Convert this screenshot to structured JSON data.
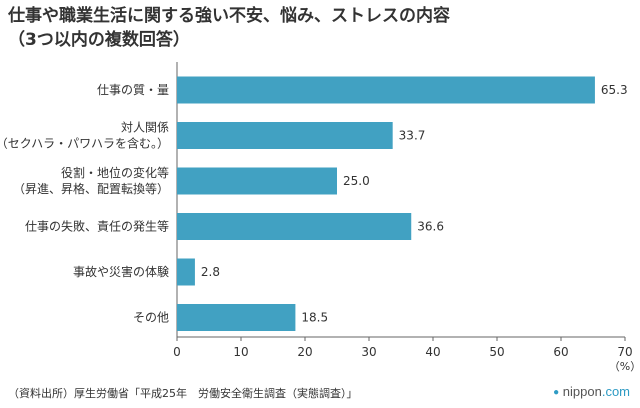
{
  "chart_data": {
    "type": "bar",
    "orientation": "horizontal",
    "title": [
      "仕事や職業生活に関する強い不安、悩み、ストレスの内容",
      "（3つ以内の複数回答）"
    ],
    "categories": [
      [
        "仕事の質・量"
      ],
      [
        "対人関係",
        "（セクハラ・パワハラを含む。）"
      ],
      [
        "役割・地位の変化等",
        "（昇進、昇格、配置転換等）"
      ],
      [
        "仕事の失敗、責任の発生等"
      ],
      [
        "事故や災害の体験"
      ],
      [
        "その他"
      ]
    ],
    "values": [
      65.3,
      33.7,
      25.0,
      36.6,
      2.8,
      18.5
    ],
    "value_labels": [
      "65.3",
      "33.7",
      "25.0",
      "36.6",
      "2.8",
      "18.5"
    ],
    "xlim": [
      0,
      70
    ],
    "xticks": [
      0,
      10,
      20,
      30,
      40,
      50,
      60,
      70
    ],
    "xlabel": "（%）",
    "grid": false,
    "bar_color": "#41a1c2"
  },
  "footer": {
    "source": "（資料出所）厚生労働省「平成25年　労働安全衛生調査（実態調査）」",
    "brand_mark": "●",
    "brand_name": "nippon",
    "brand_domain": ".com"
  }
}
